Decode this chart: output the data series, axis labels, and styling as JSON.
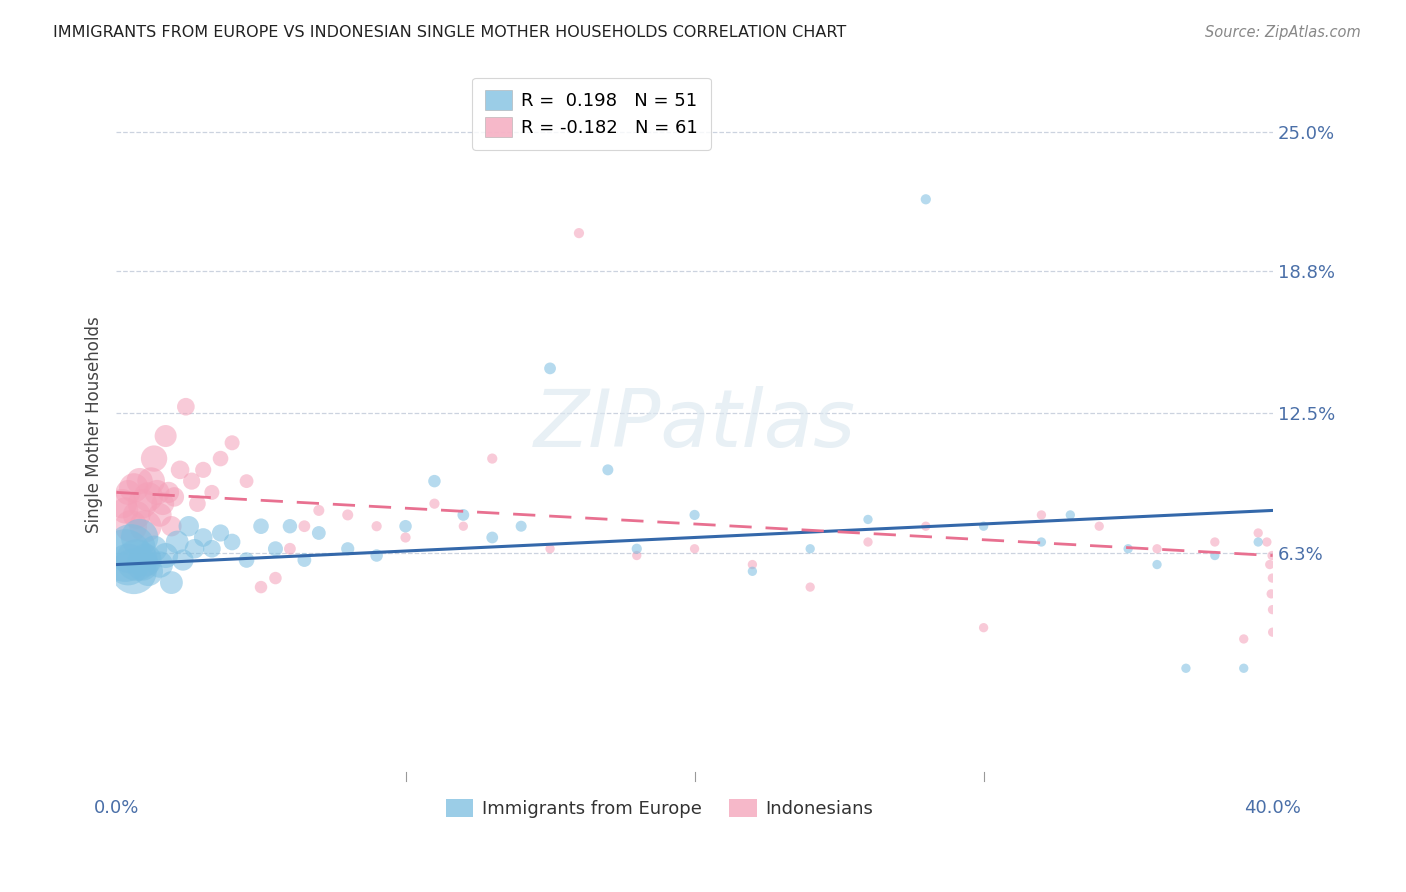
{
  "title": "IMMIGRANTS FROM EUROPE VS INDONESIAN SINGLE MOTHER HOUSEHOLDS CORRELATION CHART",
  "source": "Source: ZipAtlas.com",
  "ylabel": "Single Mother Households",
  "ytick_labels": [
    "25.0%",
    "18.8%",
    "12.5%",
    "6.3%"
  ],
  "ytick_values": [
    0.25,
    0.188,
    0.125,
    0.063
  ],
  "xlim": [
    0.0,
    0.4
  ],
  "ylim": [
    -0.038,
    0.278
  ],
  "watermark": "ZIPatlas",
  "legend_entries": [
    {
      "label": "R =  0.198   N = 51",
      "color": "#a8c8e8"
    },
    {
      "label": "R = -0.182   N = 61",
      "color": "#f4a8b8"
    }
  ],
  "blue_color": "#7abde0",
  "pink_color": "#f4a0b8",
  "blue_line_color": "#3468aa",
  "pink_line_color": "#e87090",
  "blue_scatter": {
    "x": [
      0.003,
      0.004,
      0.005,
      0.006,
      0.007,
      0.008,
      0.009,
      0.01,
      0.011,
      0.013,
      0.015,
      0.017,
      0.019,
      0.021,
      0.023,
      0.025,
      0.027,
      0.03,
      0.033,
      0.036,
      0.04,
      0.045,
      0.05,
      0.055,
      0.06,
      0.065,
      0.07,
      0.08,
      0.09,
      0.1,
      0.11,
      0.12,
      0.13,
      0.14,
      0.15,
      0.17,
      0.18,
      0.2,
      0.22,
      0.24,
      0.26,
      0.28,
      0.3,
      0.32,
      0.33,
      0.35,
      0.36,
      0.37,
      0.38,
      0.39,
      0.395
    ],
    "y": [
      0.062,
      0.058,
      0.065,
      0.055,
      0.06,
      0.07,
      0.058,
      0.06,
      0.055,
      0.065,
      0.058,
      0.062,
      0.05,
      0.068,
      0.06,
      0.075,
      0.065,
      0.07,
      0.065,
      0.072,
      0.068,
      0.06,
      0.075,
      0.065,
      0.075,
      0.06,
      0.072,
      0.065,
      0.062,
      0.075,
      0.095,
      0.08,
      0.07,
      0.075,
      0.145,
      0.1,
      0.065,
      0.08,
      0.055,
      0.065,
      0.078,
      0.22,
      0.075,
      0.068,
      0.08,
      0.065,
      0.058,
      0.012,
      0.062,
      0.012,
      0.068
    ],
    "sizes": [
      800,
      500,
      700,
      600,
      500,
      400,
      300,
      300,
      250,
      200,
      200,
      180,
      150,
      150,
      130,
      120,
      110,
      100,
      90,
      85,
      80,
      70,
      70,
      65,
      60,
      55,
      55,
      50,
      45,
      45,
      45,
      40,
      40,
      35,
      40,
      35,
      30,
      30,
      25,
      25,
      25,
      30,
      25,
      25,
      25,
      25,
      25,
      25,
      25,
      25,
      25
    ]
  },
  "pink_scatter": {
    "x": [
      0.002,
      0.003,
      0.004,
      0.005,
      0.006,
      0.007,
      0.008,
      0.009,
      0.01,
      0.011,
      0.012,
      0.013,
      0.014,
      0.015,
      0.016,
      0.017,
      0.018,
      0.019,
      0.02,
      0.022,
      0.024,
      0.026,
      0.028,
      0.03,
      0.033,
      0.036,
      0.04,
      0.045,
      0.05,
      0.055,
      0.06,
      0.065,
      0.07,
      0.08,
      0.09,
      0.1,
      0.11,
      0.12,
      0.13,
      0.15,
      0.16,
      0.18,
      0.2,
      0.22,
      0.24,
      0.26,
      0.28,
      0.3,
      0.32,
      0.34,
      0.36,
      0.38,
      0.39,
      0.395,
      0.398,
      0.399,
      0.3995,
      0.3998,
      0.3999,
      0.39995,
      0.4
    ],
    "y": [
      0.085,
      0.082,
      0.09,
      0.075,
      0.092,
      0.08,
      0.095,
      0.085,
      0.075,
      0.088,
      0.095,
      0.105,
      0.09,
      0.08,
      0.085,
      0.115,
      0.09,
      0.075,
      0.088,
      0.1,
      0.128,
      0.095,
      0.085,
      0.1,
      0.09,
      0.105,
      0.112,
      0.095,
      0.048,
      0.052,
      0.065,
      0.075,
      0.082,
      0.08,
      0.075,
      0.07,
      0.085,
      0.075,
      0.105,
      0.065,
      0.205,
      0.062,
      0.065,
      0.058,
      0.048,
      0.068,
      0.075,
      0.03,
      0.08,
      0.075,
      0.065,
      0.068,
      0.025,
      0.072,
      0.068,
      0.058,
      0.045,
      0.062,
      0.052,
      0.038,
      0.028
    ],
    "sizes": [
      250,
      200,
      180,
      300,
      250,
      220,
      200,
      250,
      300,
      250,
      220,
      200,
      180,
      160,
      150,
      140,
      130,
      120,
      110,
      100,
      90,
      85,
      80,
      75,
      65,
      70,
      65,
      55,
      45,
      45,
      40,
      40,
      35,
      35,
      30,
      30,
      30,
      25,
      30,
      25,
      30,
      25,
      25,
      25,
      25,
      25,
      25,
      25,
      25,
      25,
      25,
      25,
      25,
      25,
      25,
      25,
      25,
      25,
      25,
      25,
      25
    ]
  },
  "blue_line": {
    "x0": 0.0,
    "y0": 0.058,
    "x1": 0.4,
    "y1": 0.082
  },
  "pink_line": {
    "x0": 0.0,
    "y0": 0.09,
    "x1": 0.4,
    "y1": 0.062
  }
}
